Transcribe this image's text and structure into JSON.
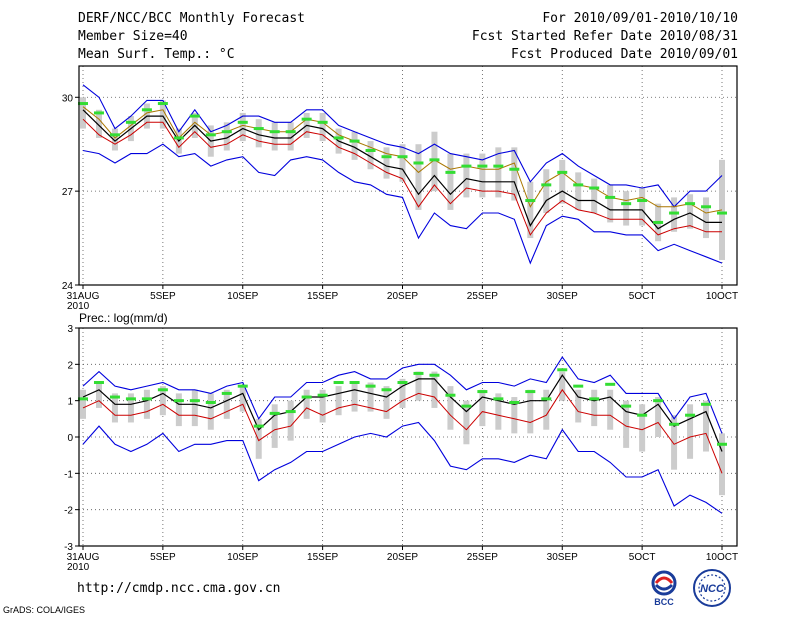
{
  "header": {
    "title": "DERF/NCC/BCC Monthly Forecast",
    "member_size": "Member Size=40",
    "variable": "Mean Surf. Temp.: °C",
    "period": "For 2010/09/01-2010/10/10",
    "started": "Fcst Started Refer Date 2010/08/31",
    "produced": "Fcst Produced Date 2010/09/01"
  },
  "footer": {
    "url": "http://cmdp.ncc.cma.gov.cn",
    "grads": "GrADS: COLA/IGES",
    "logo_left_text": "BCC",
    "logo_right_text": "NCC"
  },
  "colors": {
    "envelope": "#0000dd",
    "mean": "#000000",
    "median": "#cc0000",
    "observed": "#33dd33",
    "spread": "#cccccc",
    "alt": "#aa7700"
  },
  "chart_data": [
    {
      "type": "line",
      "title": "",
      "label": "",
      "xticks": [
        "31AUG",
        "5SEP",
        "10SEP",
        "15SEP",
        "20SEP",
        "25SEP",
        "30SEP",
        "5OCT",
        "10OCT"
      ],
      "xtick_index": [
        0,
        5,
        10,
        15,
        20,
        25,
        30,
        35,
        40
      ],
      "year_label": "2010",
      "ylim": [
        24,
        31
      ],
      "yticks": [
        24,
        27,
        30
      ],
      "series": [
        {
          "name": "max",
          "values": [
            30.4,
            30.0,
            29.0,
            29.4,
            29.9,
            29.9,
            28.9,
            29.6,
            28.9,
            29.1,
            29.4,
            29.4,
            29.2,
            29.2,
            29.6,
            29.6,
            29.1,
            28.9,
            28.7,
            28.5,
            28.4,
            28.2,
            28.5,
            28.2,
            28.1,
            28.0,
            28.2,
            28.3,
            27.3,
            27.9,
            28.2,
            27.8,
            27.5,
            27.2,
            27.2,
            27.1,
            27.2,
            26.5,
            27.0,
            27.0,
            27.5
          ]
        },
        {
          "name": "upper",
          "values": [
            29.7,
            29.3,
            28.7,
            29.1,
            29.5,
            29.6,
            28.7,
            29.2,
            28.8,
            28.9,
            29.1,
            29.0,
            28.9,
            28.9,
            29.3,
            29.2,
            28.8,
            28.6,
            28.4,
            28.2,
            28.1,
            27.6,
            28.0,
            27.7,
            27.8,
            27.7,
            27.7,
            27.9,
            26.5,
            27.3,
            27.6,
            27.2,
            27.1,
            26.8,
            26.7,
            26.8,
            26.5,
            26.5,
            26.6,
            26.3,
            26.4
          ]
        },
        {
          "name": "mean",
          "values": [
            29.6,
            29.1,
            28.6,
            29.0,
            29.4,
            29.4,
            28.6,
            29.1,
            28.6,
            28.7,
            29.0,
            28.8,
            28.7,
            28.7,
            29.1,
            29.0,
            28.6,
            28.4,
            28.1,
            27.8,
            27.7,
            26.9,
            27.5,
            26.9,
            27.4,
            27.3,
            27.3,
            27.3,
            25.9,
            26.7,
            27.0,
            26.7,
            26.7,
            26.4,
            26.4,
            26.4,
            25.8,
            26.1,
            26.3,
            26.0,
            26.0
          ]
        },
        {
          "name": "lower",
          "values": [
            29.3,
            28.8,
            28.5,
            28.8,
            29.2,
            29.2,
            28.4,
            28.9,
            28.4,
            28.5,
            28.8,
            28.6,
            28.5,
            28.5,
            28.9,
            28.8,
            28.4,
            28.2,
            27.9,
            27.6,
            27.4,
            26.5,
            27.2,
            26.6,
            27.1,
            27.0,
            27.0,
            26.9,
            25.6,
            26.3,
            26.7,
            26.4,
            26.3,
            26.1,
            26.1,
            26.1,
            25.6,
            25.8,
            25.9,
            25.7,
            25.7
          ]
        },
        {
          "name": "min",
          "values": [
            28.3,
            28.2,
            27.9,
            28.2,
            28.2,
            28.5,
            28.1,
            28.2,
            27.8,
            28.0,
            28.1,
            27.6,
            27.5,
            28.0,
            28.1,
            28.0,
            27.6,
            27.3,
            27.2,
            26.9,
            26.8,
            25.5,
            26.3,
            25.9,
            25.8,
            26.3,
            26.3,
            26.1,
            24.7,
            25.9,
            26.2,
            26.1,
            25.7,
            25.7,
            25.6,
            25.6,
            25.1,
            25.3,
            25.1,
            24.9,
            24.7
          ]
        },
        {
          "name": "observed",
          "values": [
            29.8,
            29.5,
            28.8,
            29.2,
            29.6,
            29.8,
            28.7,
            29.4,
            28.8,
            28.9,
            29.2,
            29.0,
            28.9,
            28.9,
            29.3,
            29.2,
            28.7,
            28.6,
            28.3,
            28.1,
            28.1,
            27.9,
            28.0,
            27.6,
            27.8,
            27.8,
            27.8,
            27.7,
            26.7,
            27.2,
            27.6,
            27.2,
            27.1,
            26.8,
            26.6,
            26.7,
            26.0,
            26.3,
            26.6,
            26.5,
            26.3
          ]
        },
        {
          "name": "spread_high",
          "values": [
            30.0,
            29.6,
            29.0,
            29.4,
            29.8,
            29.9,
            29.0,
            29.5,
            29.1,
            29.2,
            29.5,
            29.3,
            29.2,
            29.2,
            29.5,
            29.5,
            29.0,
            28.9,
            28.6,
            28.4,
            28.5,
            28.5,
            28.9,
            28.2,
            28.2,
            28.2,
            28.4,
            28.4,
            27.3,
            27.7,
            28.0,
            27.6,
            27.4,
            27.2,
            27.0,
            27.1,
            26.6,
            26.8,
            26.9,
            26.8,
            28.0
          ]
        },
        {
          "name": "spread_low",
          "values": [
            29.0,
            28.7,
            28.3,
            28.6,
            29.0,
            29.0,
            28.2,
            28.7,
            28.1,
            28.3,
            28.6,
            28.4,
            28.3,
            28.3,
            28.7,
            28.6,
            28.2,
            28.0,
            27.7,
            27.4,
            27.3,
            26.4,
            27.0,
            26.4,
            26.8,
            26.8,
            26.8,
            26.7,
            25.5,
            26.3,
            26.6,
            26.4,
            26.3,
            26.0,
            25.9,
            25.9,
            25.4,
            25.7,
            25.8,
            25.5,
            24.8
          ]
        }
      ]
    },
    {
      "type": "line",
      "title": "",
      "label": "Prec.: log(mm/d)",
      "xticks": [
        "31AUG",
        "5SEP",
        "10SEP",
        "15SEP",
        "20SEP",
        "25SEP",
        "30SEP",
        "5OCT",
        "10OCT"
      ],
      "xtick_index": [
        0,
        5,
        10,
        15,
        20,
        25,
        30,
        35,
        40
      ],
      "year_label": "2010",
      "ylim": [
        -3,
        3
      ],
      "yticks": [
        -3,
        -2,
        -1,
        0,
        1,
        2,
        3
      ],
      "series": [
        {
          "name": "max",
          "values": [
            1.4,
            1.8,
            1.4,
            1.3,
            1.4,
            1.5,
            1.3,
            1.3,
            1.2,
            1.4,
            1.5,
            0.5,
            1.1,
            1.1,
            1.5,
            1.5,
            1.7,
            1.8,
            1.6,
            1.6,
            1.9,
            2.0,
            2.0,
            1.7,
            1.3,
            1.5,
            1.5,
            1.4,
            1.6,
            1.5,
            2.2,
            1.6,
            1.5,
            1.7,
            1.2,
            1.2,
            1.2,
            0.5,
            1.1,
            1.2,
            0.1
          ]
        },
        {
          "name": "mean",
          "values": [
            1.1,
            1.3,
            0.9,
            0.9,
            1.0,
            1.2,
            0.9,
            0.9,
            0.8,
            1.0,
            1.2,
            0.2,
            0.6,
            0.7,
            1.1,
            1.1,
            1.2,
            1.3,
            1.2,
            1.1,
            1.4,
            1.6,
            1.6,
            1.1,
            0.7,
            1.1,
            1.0,
            0.9,
            1.0,
            1.0,
            1.7,
            1.1,
            1.0,
            1.1,
            0.7,
            0.6,
            0.9,
            0.3,
            0.5,
            0.7,
            -0.4
          ]
        },
        {
          "name": "lower",
          "values": [
            0.8,
            1.0,
            0.6,
            0.6,
            0.7,
            0.9,
            0.6,
            0.6,
            0.5,
            0.7,
            0.9,
            -0.1,
            0.2,
            0.3,
            0.8,
            0.6,
            0.8,
            0.9,
            0.8,
            0.7,
            1.0,
            1.2,
            1.1,
            0.6,
            0.2,
            0.7,
            0.6,
            0.5,
            0.4,
            0.6,
            1.3,
            0.7,
            0.6,
            0.6,
            0.3,
            0.2,
            0.4,
            -0.2,
            0.0,
            0.1,
            -1.0
          ]
        },
        {
          "name": "min",
          "values": [
            -0.2,
            0.3,
            -0.2,
            -0.4,
            -0.2,
            0.1,
            -0.4,
            -0.2,
            -0.2,
            -0.1,
            -0.1,
            -1.2,
            -0.9,
            -0.7,
            -0.4,
            -0.4,
            -0.2,
            0.0,
            0.1,
            0.0,
            0.3,
            0.4,
            -0.1,
            -0.8,
            -0.9,
            -0.6,
            -0.6,
            -0.7,
            -0.5,
            -0.6,
            0.2,
            -0.4,
            -0.4,
            -0.7,
            -1.1,
            -1.1,
            -0.9,
            -1.9,
            -1.6,
            -1.8,
            -2.1
          ]
        },
        {
          "name": "observed",
          "values": [
            1.05,
            1.5,
            1.1,
            1.05,
            1.05,
            1.3,
            1.0,
            1.0,
            0.95,
            1.2,
            1.4,
            0.3,
            0.65,
            0.7,
            1.1,
            1.15,
            1.5,
            1.5,
            1.4,
            1.3,
            1.5,
            1.75,
            1.7,
            1.15,
            0.85,
            1.25,
            1.05,
            0.95,
            1.25,
            1.05,
            1.85,
            1.4,
            1.05,
            1.45,
            0.85,
            0.6,
            1.0,
            0.35,
            0.6,
            0.9,
            -0.2
          ]
        },
        {
          "name": "spread_high",
          "values": [
            1.3,
            1.5,
            1.2,
            1.2,
            1.3,
            1.4,
            1.2,
            1.3,
            1.2,
            1.3,
            1.4,
            0.5,
            0.9,
            1.0,
            1.3,
            1.3,
            1.4,
            1.5,
            1.5,
            1.4,
            1.6,
            1.8,
            1.8,
            1.4,
            1.0,
            1.3,
            1.2,
            1.1,
            1.3,
            1.3,
            1.8,
            1.3,
            1.3,
            1.3,
            1.0,
            0.9,
            1.1,
            0.6,
            0.9,
            1.0,
            0.1
          ]
        },
        {
          "name": "spread_low",
          "values": [
            0.5,
            0.8,
            0.4,
            0.4,
            0.5,
            0.6,
            0.3,
            0.3,
            0.2,
            0.5,
            0.7,
            -0.6,
            -0.3,
            -0.1,
            0.5,
            0.4,
            0.6,
            0.7,
            0.7,
            0.5,
            0.8,
            1.0,
            0.8,
            0.2,
            -0.2,
            0.3,
            0.2,
            0.1,
            0.1,
            0.2,
            1.0,
            0.4,
            0.3,
            0.2,
            -0.3,
            -0.4,
            0.0,
            -0.9,
            -0.6,
            -0.4,
            -1.6
          ]
        }
      ]
    }
  ]
}
